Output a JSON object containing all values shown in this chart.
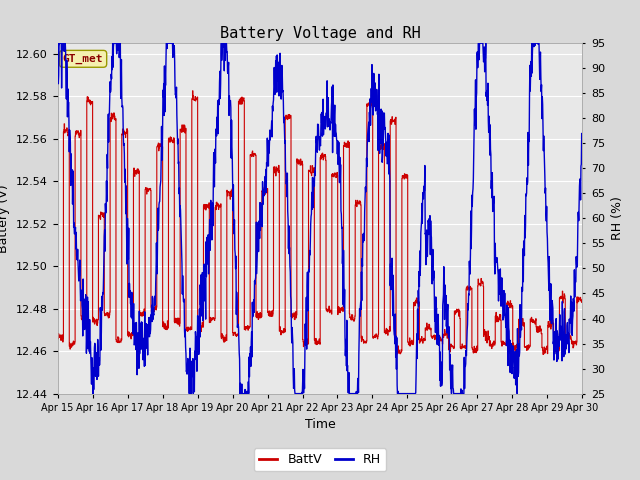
{
  "title": "Battery Voltage and RH",
  "xlabel": "Time",
  "ylabel_left": "Battery (V)",
  "ylabel_right": "RH (%)",
  "annotation": "GT_met",
  "legend_entries": [
    "BattV",
    "RH"
  ],
  "legend_colors": [
    "#cc0000",
    "#0000cc"
  ],
  "x_tick_labels": [
    "Apr 15",
    "Apr 16",
    "Apr 17",
    "Apr 18",
    "Apr 19",
    "Apr 20",
    "Apr 21",
    "Apr 22",
    "Apr 23",
    "Apr 24",
    "Apr 25",
    "Apr 26",
    "Apr 27",
    "Apr 28",
    "Apr 29",
    "Apr 30"
  ],
  "ylim_left": [
    12.44,
    12.605
  ],
  "ylim_right": [
    25,
    95
  ],
  "yticks_left": [
    12.44,
    12.46,
    12.48,
    12.5,
    12.52,
    12.54,
    12.56,
    12.58,
    12.6
  ],
  "yticks_right": [
    25,
    30,
    35,
    40,
    45,
    50,
    55,
    60,
    65,
    70,
    75,
    80,
    85,
    90,
    95
  ],
  "bg_color": "#d9d9d9",
  "plot_bg_color": "#e8e8e8",
  "grid_color": "#ffffff",
  "battv_color": "#cc0000",
  "rh_color": "#0000cc",
  "title_fontsize": 11,
  "axis_fontsize": 9,
  "tick_fontsize": 8,
  "n_days": 15,
  "points_per_day": 96
}
